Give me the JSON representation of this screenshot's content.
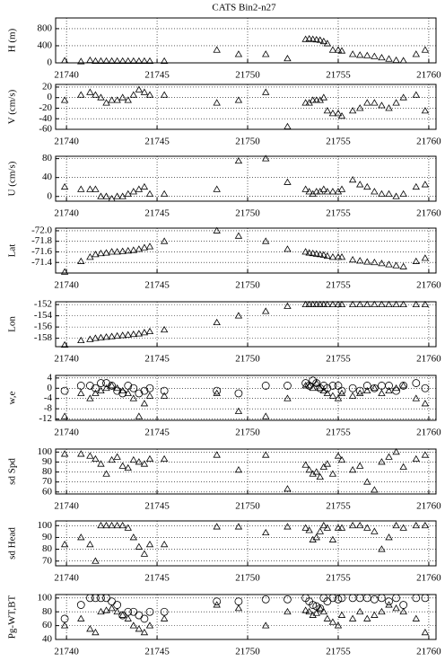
{
  "title": "CATS Bin2-n27",
  "chart_data": [
    {
      "type": "scatter",
      "ylabel": "H (m)",
      "x": [
        21739.9,
        21740.8,
        21741.3,
        21741.6,
        21741.9,
        21742.2,
        21742.5,
        21742.8,
        21743.1,
        21743.4,
        21743.7,
        21744.0,
        21744.3,
        21744.6,
        21745.4,
        21748.3,
        21749.5,
        21751.0,
        21752.2,
        21753.2,
        21753.4,
        21753.6,
        21753.8,
        21754.0,
        21754.2,
        21754.4,
        21754.7,
        21755.0,
        21755.2,
        21755.8,
        21756.2,
        21756.6,
        21757.0,
        21757.4,
        21757.8,
        21758.2,
        21758.6,
        21759.3,
        21759.8
      ],
      "xlim": [
        21739.4,
        21760.4
      ],
      "xticks": [
        21740,
        21745,
        21750,
        21755,
        21760
      ],
      "ylim": [
        0,
        1050
      ],
      "yticks": [
        0,
        400,
        800
      ],
      "grid": true,
      "series": [
        {
          "marker": "triangle",
          "color": "#000000",
          "values": [
            50,
            30,
            60,
            40,
            40,
            40,
            40,
            40,
            40,
            40,
            40,
            40,
            40,
            40,
            40,
            300,
            200,
            200,
            100,
            550,
            560,
            550,
            540,
            530,
            500,
            450,
            300,
            300,
            280,
            200,
            180,
            170,
            150,
            120,
            90,
            60,
            50,
            200,
            300
          ]
        }
      ]
    },
    {
      "type": "scatter",
      "ylabel": "V (cm/s)",
      "x": [
        21739.9,
        21740.8,
        21741.3,
        21741.6,
        21741.9,
        21742.2,
        21742.5,
        21742.8,
        21743.1,
        21743.4,
        21743.7,
        21744.0,
        21744.3,
        21744.6,
        21745.4,
        21748.3,
        21749.5,
        21751.0,
        21752.2,
        21753.2,
        21753.4,
        21753.6,
        21753.8,
        21754.0,
        21754.2,
        21754.4,
        21754.7,
        21755.0,
        21755.2,
        21755.8,
        21756.2,
        21756.6,
        21757.0,
        21757.4,
        21757.8,
        21758.2,
        21758.6,
        21759.3,
        21759.8
      ],
      "xlim": [
        21739.4,
        21760.4
      ],
      "xticks": [
        21740,
        21745,
        21750,
        21755,
        21760
      ],
      "ylim": [
        -60,
        25
      ],
      "yticks": [
        20,
        0,
        -20,
        -40,
        -60
      ],
      "grid": true,
      "series": [
        {
          "marker": "triangle",
          "color": "#000000",
          "values": [
            -5,
            5,
            10,
            5,
            0,
            -10,
            -5,
            -5,
            0,
            -5,
            5,
            15,
            10,
            5,
            5,
            -10,
            -5,
            10,
            -55,
            -10,
            -10,
            -5,
            -5,
            -5,
            0,
            -25,
            -30,
            -30,
            -35,
            -25,
            -20,
            -10,
            -10,
            -15,
            -20,
            -10,
            0,
            5,
            -25
          ]
        }
      ]
    },
    {
      "type": "scatter",
      "ylabel": "U (cm/s)",
      "x": [
        21739.9,
        21740.8,
        21741.3,
        21741.6,
        21741.9,
        21742.2,
        21742.5,
        21742.8,
        21743.1,
        21743.4,
        21743.7,
        21744.0,
        21744.3,
        21744.6,
        21745.4,
        21748.3,
        21749.5,
        21751.0,
        21752.2,
        21753.2,
        21753.4,
        21753.6,
        21753.8,
        21754.0,
        21754.2,
        21754.4,
        21754.7,
        21755.0,
        21755.2,
        21755.8,
        21756.2,
        21756.6,
        21757.0,
        21757.4,
        21757.8,
        21758.2,
        21758.6,
        21759.3,
        21759.8
      ],
      "xlim": [
        21739.4,
        21760.4
      ],
      "xticks": [
        21740,
        21745,
        21750,
        21755,
        21760
      ],
      "ylim": [
        -10,
        85
      ],
      "yticks": [
        0,
        40,
        80
      ],
      "grid": true,
      "series": [
        {
          "marker": "triangle",
          "color": "#000000",
          "values": [
            20,
            15,
            15,
            15,
            0,
            0,
            -5,
            0,
            0,
            5,
            10,
            15,
            20,
            5,
            5,
            15,
            75,
            80,
            30,
            15,
            10,
            5,
            10,
            10,
            15,
            10,
            10,
            10,
            15,
            35,
            25,
            20,
            10,
            5,
            5,
            0,
            5,
            20,
            25
          ]
        }
      ]
    },
    {
      "type": "scatter",
      "ylabel": "Lat",
      "x": [
        21739.9,
        21740.8,
        21741.3,
        21741.6,
        21741.9,
        21742.2,
        21742.5,
        21742.8,
        21743.1,
        21743.4,
        21743.7,
        21744.0,
        21744.3,
        21744.6,
        21745.4,
        21748.3,
        21749.5,
        21751.0,
        21752.2,
        21753.2,
        21753.4,
        21753.6,
        21753.8,
        21754.0,
        21754.2,
        21754.4,
        21754.7,
        21755.0,
        21755.2,
        21755.8,
        21756.2,
        21756.6,
        21757.0,
        21757.4,
        21757.8,
        21758.2,
        21758.6,
        21759.3,
        21759.8
      ],
      "xlim": [
        21739.4,
        21760.4
      ],
      "xticks": [
        21740,
        21745,
        21750,
        21755,
        21760
      ],
      "ylim": [
        -71.2,
        -72.05
      ],
      "yticks": [
        {
          "value": -72,
          "label": "-72.0"
        },
        -71.8,
        -71.6,
        -71.4
      ],
      "grid": true,
      "series": [
        {
          "marker": "triangle",
          "color": "#000000",
          "values": [
            -71.22,
            -71.42,
            -71.5,
            -71.55,
            -71.57,
            -71.58,
            -71.6,
            -71.6,
            -71.61,
            -71.62,
            -71.63,
            -71.65,
            -71.68,
            -71.7,
            -71.8,
            -72.0,
            -71.9,
            -71.8,
            -71.65,
            -71.6,
            -71.58,
            -71.57,
            -71.56,
            -71.55,
            -71.54,
            -71.52,
            -71.5,
            -71.5,
            -71.5,
            -71.45,
            -71.43,
            -71.41,
            -71.4,
            -71.38,
            -71.36,
            -71.34,
            -71.32,
            -71.42,
            -71.48
          ]
        }
      ]
    },
    {
      "type": "scatter",
      "ylabel": "Lon",
      "x": [
        21739.9,
        21740.8,
        21741.3,
        21741.6,
        21741.9,
        21742.2,
        21742.5,
        21742.8,
        21743.1,
        21743.4,
        21743.7,
        21744.0,
        21744.3,
        21744.6,
        21745.4,
        21748.3,
        21749.5,
        21751.0,
        21752.2,
        21753.2,
        21753.4,
        21753.6,
        21753.8,
        21754.0,
        21754.2,
        21754.4,
        21754.7,
        21755.0,
        21755.2,
        21755.8,
        21756.2,
        21756.6,
        21757.0,
        21757.4,
        21757.8,
        21758.2,
        21758.6,
        21759.3,
        21759.8
      ],
      "xlim": [
        21739.4,
        21760.4
      ],
      "xticks": [
        21740,
        21745,
        21750,
        21755,
        21760
      ],
      "ylim": [
        -159.5,
        -151.5
      ],
      "yticks": [
        -152,
        -154,
        -156,
        -158
      ],
      "grid": true,
      "series": [
        {
          "marker": "triangle",
          "color": "#000000",
          "values": [
            -159.2,
            -158.4,
            -158.2,
            -158,
            -157.9,
            -157.8,
            -157.7,
            -157.6,
            -157.5,
            -157.4,
            -157.3,
            -157.2,
            -157,
            -156.8,
            -156.5,
            -155.2,
            -154,
            -153.2,
            -152.3,
            -152,
            -152,
            -152,
            -152,
            -152,
            -152,
            -152,
            -152,
            -152,
            -152,
            -152,
            -152,
            -152,
            -152,
            -152,
            -152,
            -152,
            -152,
            -152,
            -152
          ]
        }
      ]
    },
    {
      "type": "scatter",
      "ylabel": "w,e",
      "x": [
        21739.9,
        21740.8,
        21741.3,
        21741.6,
        21741.9,
        21742.2,
        21742.5,
        21742.8,
        21743.1,
        21743.4,
        21743.7,
        21744.0,
        21744.3,
        21744.6,
        21745.4,
        21748.3,
        21749.5,
        21751.0,
        21752.2,
        21753.2,
        21753.4,
        21753.6,
        21753.8,
        21754.0,
        21754.2,
        21754.4,
        21754.7,
        21755.0,
        21755.2,
        21755.8,
        21756.2,
        21756.6,
        21757.0,
        21757.4,
        21757.8,
        21758.2,
        21758.6,
        21759.3,
        21759.8
      ],
      "xlim": [
        21739.4,
        21760.4
      ],
      "xticks": [
        21740,
        21745,
        21750,
        21755,
        21760
      ],
      "ylim": [
        -12.5,
        5
      ],
      "yticks": [
        4,
        0,
        -4,
        -8,
        -12
      ],
      "grid": true,
      "series": [
        {
          "marker": "triangle",
          "color": "#000000",
          "values": [
            -11,
            -2,
            -4,
            -2,
            -1,
            0,
            1,
            0,
            -1,
            -2,
            -4,
            -11,
            -6,
            -3,
            -3,
            -2,
            -9,
            -11,
            -4,
            1,
            1,
            0,
            2,
            0,
            -1,
            -2,
            -3,
            -4,
            -2,
            -3,
            -2,
            -1,
            0,
            -2,
            -1,
            0,
            1,
            -4,
            -6
          ]
        },
        {
          "marker": "circle",
          "color": "#000000",
          "values": [
            -1,
            1,
            1,
            0,
            2,
            2,
            1,
            -1,
            -2,
            1,
            0,
            -2,
            -1,
            0,
            -1,
            -1,
            -2,
            1,
            1,
            2,
            1,
            3,
            2,
            0,
            1,
            0,
            1,
            1,
            -1,
            0,
            -1,
            1,
            0,
            1,
            1,
            -1,
            1,
            2,
            0
          ]
        }
      ]
    },
    {
      "type": "scatter",
      "ylabel": "sd Spd",
      "x": [
        21739.9,
        21740.8,
        21741.3,
        21741.6,
        21741.9,
        21742.2,
        21742.5,
        21742.8,
        21743.1,
        21743.4,
        21743.7,
        21744.0,
        21744.3,
        21744.6,
        21745.4,
        21748.3,
        21749.5,
        21751.0,
        21752.2,
        21753.2,
        21753.4,
        21753.6,
        21753.8,
        21754.0,
        21754.2,
        21754.4,
        21754.7,
        21755.0,
        21755.2,
        21755.8,
        21756.2,
        21756.6,
        21757.0,
        21757.4,
        21757.8,
        21758.2,
        21758.6,
        21759.3,
        21759.8
      ],
      "xlim": [
        21739.4,
        21760.4
      ],
      "xticks": [
        21740,
        21745,
        21750,
        21755,
        21760
      ],
      "ylim": [
        58,
        103
      ],
      "yticks": [
        100,
        90,
        80,
        70,
        60
      ],
      "grid": true,
      "series": [
        {
          "marker": "triangle",
          "color": "#000000",
          "values": [
            98,
            98,
            96,
            93,
            88,
            78,
            92,
            95,
            86,
            84,
            92,
            90,
            88,
            93,
            93,
            97,
            82,
            97,
            63,
            87,
            82,
            78,
            80,
            75,
            85,
            88,
            78,
            96,
            92,
            82,
            86,
            70,
            62,
            90,
            95,
            100,
            85,
            93,
            97
          ]
        }
      ]
    },
    {
      "type": "scatter",
      "ylabel": "sd Head",
      "x": [
        21739.9,
        21740.8,
        21741.3,
        21741.6,
        21741.9,
        21742.2,
        21742.5,
        21742.8,
        21743.1,
        21743.4,
        21743.7,
        21744.0,
        21744.3,
        21744.6,
        21745.4,
        21748.3,
        21749.5,
        21751.0,
        21752.2,
        21753.2,
        21753.4,
        21753.6,
        21753.8,
        21754.0,
        21754.2,
        21754.4,
        21754.7,
        21755.0,
        21755.2,
        21755.8,
        21756.2,
        21756.6,
        21757.0,
        21757.4,
        21757.8,
        21758.2,
        21758.6,
        21759.3,
        21759.8
      ],
      "xlim": [
        21739.4,
        21760.4
      ],
      "xticks": [
        21740,
        21745,
        21750,
        21755,
        21760
      ],
      "ylim": [
        66,
        104
      ],
      "yticks": [
        100,
        90,
        80,
        70
      ],
      "grid": true,
      "series": [
        {
          "marker": "triangle",
          "color": "#000000",
          "values": [
            84,
            90,
            84,
            70,
            100,
            100,
            100,
            100,
            100,
            98,
            90,
            82,
            76,
            84,
            84,
            99,
            99,
            94,
            99,
            98,
            96,
            88,
            90,
            95,
            100,
            98,
            88,
            98,
            98,
            100,
            100,
            98,
            95,
            80,
            90,
            100,
            98,
            100,
            100
          ]
        }
      ]
    },
    {
      "type": "scatter",
      "ylabel": "Pg-WT,BT",
      "x": [
        21739.9,
        21740.8,
        21741.3,
        21741.6,
        21741.9,
        21742.2,
        21742.5,
        21742.8,
        21743.1,
        21743.4,
        21743.7,
        21744.0,
        21744.3,
        21744.6,
        21745.4,
        21748.3,
        21749.5,
        21751.0,
        21752.2,
        21753.2,
        21753.4,
        21753.6,
        21753.8,
        21754.0,
        21754.2,
        21754.4,
        21754.7,
        21755.0,
        21755.2,
        21755.8,
        21756.2,
        21756.6,
        21757.0,
        21757.4,
        21757.8,
        21758.2,
        21758.6,
        21759.3,
        21759.8
      ],
      "xlim": [
        21739.4,
        21760.4
      ],
      "xticks": [
        21740,
        21745,
        21750,
        21755,
        21760
      ],
      "ylim": [
        40,
        105
      ],
      "yticks": [
        100,
        80,
        60,
        40
      ],
      "grid": true,
      "series": [
        {
          "marker": "triangle",
          "color": "#000000",
          "values": [
            60,
            70,
            55,
            50,
            80,
            82,
            85,
            80,
            75,
            70,
            60,
            55,
            50,
            60,
            70,
            90,
            85,
            60,
            80,
            82,
            80,
            75,
            78,
            85,
            80,
            70,
            65,
            60,
            75,
            70,
            80,
            70,
            75,
            80,
            90,
            85,
            80,
            70,
            50
          ]
        },
        {
          "marker": "circle",
          "color": "#000000",
          "values": [
            70,
            90,
            100,
            100,
            100,
            100,
            95,
            90,
            75,
            80,
            80,
            75,
            70,
            80,
            80,
            95,
            95,
            98,
            98,
            100,
            95,
            90,
            88,
            85,
            100,
            95,
            100,
            98,
            100,
            100,
            100,
            100,
            98,
            100,
            95,
            100,
            90,
            100,
            100
          ]
        }
      ]
    }
  ]
}
